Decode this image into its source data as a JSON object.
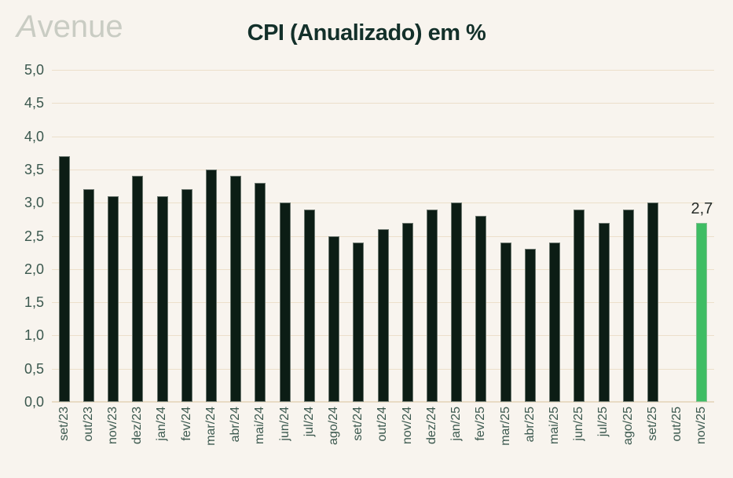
{
  "header": {
    "logo_initial": "A",
    "logo_rest": "venue"
  },
  "chart_data": {
    "type": "bar",
    "title": "CPI (Anualizado) em %",
    "categories": [
      "set/23",
      "out/23",
      "nov/23",
      "dez/23",
      "jan/24",
      "fev/24",
      "mar/24",
      "abr/24",
      "mai/24",
      "jun/24",
      "jul/24",
      "ago/24",
      "set/24",
      "out/24",
      "nov/24",
      "dez/24",
      "jan/25",
      "fev/25",
      "mar/25",
      "abr/25",
      "mai/25",
      "jun/25",
      "jul/25",
      "ago/25",
      "set/25",
      "out/25",
      "nov/25"
    ],
    "values": [
      3.7,
      3.2,
      3.1,
      3.4,
      3.1,
      3.2,
      3.5,
      3.4,
      3.3,
      3.0,
      2.9,
      2.5,
      2.4,
      2.6,
      2.7,
      2.9,
      3.0,
      2.8,
      2.4,
      2.3,
      2.4,
      2.9,
      2.7,
      2.9,
      3.0,
      null,
      2.7
    ],
    "highlight_index": 26,
    "data_label": {
      "index": 26,
      "text": "2,7"
    },
    "xlabel": "",
    "ylabel": "",
    "ylim": [
      0,
      5
    ],
    "ytick_step": 0.5,
    "ytick_labels": [
      "0,0",
      "0,5",
      "1,0",
      "1,5",
      "2,0",
      "2,5",
      "3,0",
      "3,5",
      "4,0",
      "4,5",
      "5,0"
    ],
    "grid": true,
    "legend": false,
    "colors": {
      "bar": "#0c1d15",
      "highlight_bar": "#3ebd63",
      "gridline": "#ecdfca",
      "background": "#f8f4ee",
      "axis_text": "#3b584e",
      "title_text": "#13302a",
      "logo_text": "#c9ccc3",
      "data_label_text": "#262c28"
    }
  }
}
